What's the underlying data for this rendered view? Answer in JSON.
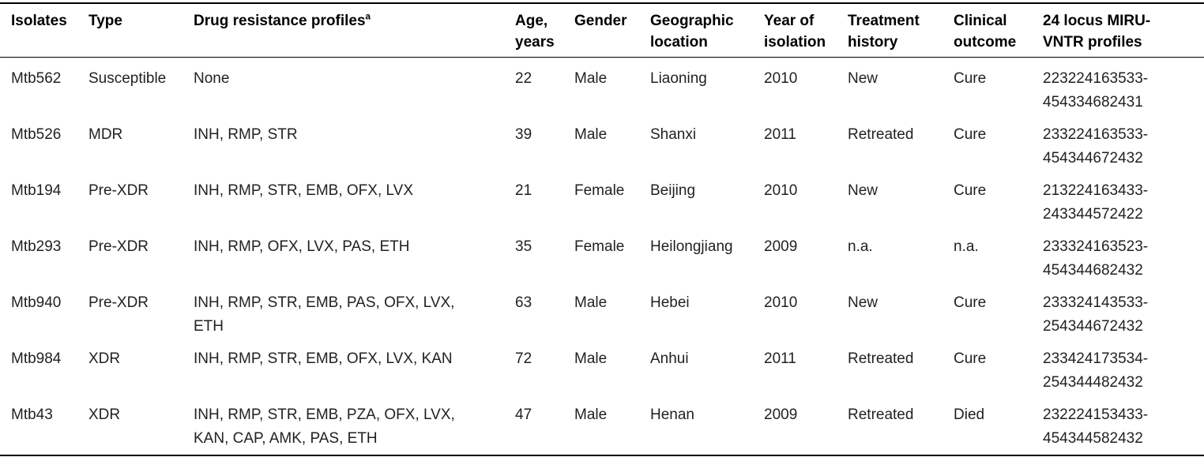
{
  "colors": {
    "background": "#ffffff",
    "rule": "#000000",
    "header_text": "#000000",
    "body_text": "#231f20"
  },
  "table": {
    "columns": [
      {
        "key": "isolate",
        "label": "Isolates"
      },
      {
        "key": "type",
        "label": "Type"
      },
      {
        "key": "drug_resistance",
        "label": "Drug resistance profiles",
        "footnote_marker": "a"
      },
      {
        "key": "age",
        "label": "Age,\nyears"
      },
      {
        "key": "gender",
        "label": "Gender"
      },
      {
        "key": "location",
        "label": "Geographic\nlocation"
      },
      {
        "key": "year",
        "label": "Year of\nisolation"
      },
      {
        "key": "treatment",
        "label": "Treatment\nhistory"
      },
      {
        "key": "outcome",
        "label": "Clinical\noutcome"
      },
      {
        "key": "miru",
        "label": "24 locus MIRU-\nVNTR profiles"
      }
    ],
    "rows": [
      {
        "isolate": "Mtb562",
        "type": "Susceptible",
        "drug_resistance": "None",
        "age": "22",
        "gender": "Male",
        "location": "Liaoning",
        "year": "2010",
        "treatment": "New",
        "outcome": "Cure",
        "miru": "223224163533-\n454334682431"
      },
      {
        "isolate": "Mtb526",
        "type": "MDR",
        "drug_resistance": "INH, RMP, STR",
        "age": "39",
        "gender": "Male",
        "location": "Shanxi",
        "year": "2011",
        "treatment": "Retreated",
        "outcome": "Cure",
        "miru": "233224163533-\n454344672432"
      },
      {
        "isolate": "Mtb194",
        "type": "Pre-XDR",
        "drug_resistance": "INH, RMP, STR, EMB, OFX, LVX",
        "age": "21",
        "gender": "Female",
        "location": "Beijing",
        "year": "2010",
        "treatment": "New",
        "outcome": "Cure",
        "miru": "213224163433-\n243344572422"
      },
      {
        "isolate": "Mtb293",
        "type": "Pre-XDR",
        "drug_resistance": "INH, RMP, OFX, LVX, PAS, ETH",
        "age": "35",
        "gender": "Female",
        "location": "Heilongjiang",
        "year": "2009",
        "treatment": "n.a.",
        "outcome": "n.a.",
        "miru": "233324163523-\n454344682432"
      },
      {
        "isolate": "Mtb940",
        "type": "Pre-XDR",
        "drug_resistance": "INH, RMP, STR, EMB, PAS, OFX, LVX,\nETH",
        "age": "63",
        "gender": "Male",
        "location": "Hebei",
        "year": "2010",
        "treatment": "New",
        "outcome": "Cure",
        "miru": "233324143533-\n254344672432"
      },
      {
        "isolate": "Mtb984",
        "type": "XDR",
        "drug_resistance": "INH, RMP, STR, EMB, OFX, LVX, KAN",
        "age": "72",
        "gender": "Male",
        "location": "Anhui",
        "year": "2011",
        "treatment": "Retreated",
        "outcome": "Cure",
        "miru": "233424173534-\n254344482432"
      },
      {
        "isolate": "Mtb43",
        "type": "XDR",
        "drug_resistance": "INH, RMP, STR, EMB, PZA, OFX, LVX,\nKAN, CAP, AMK, PAS, ETH",
        "age": "47",
        "gender": "Male",
        "location": "Henan",
        "year": "2009",
        "treatment": "Retreated",
        "outcome": "Died",
        "miru": "232224153433-\n454344582432"
      }
    ]
  }
}
